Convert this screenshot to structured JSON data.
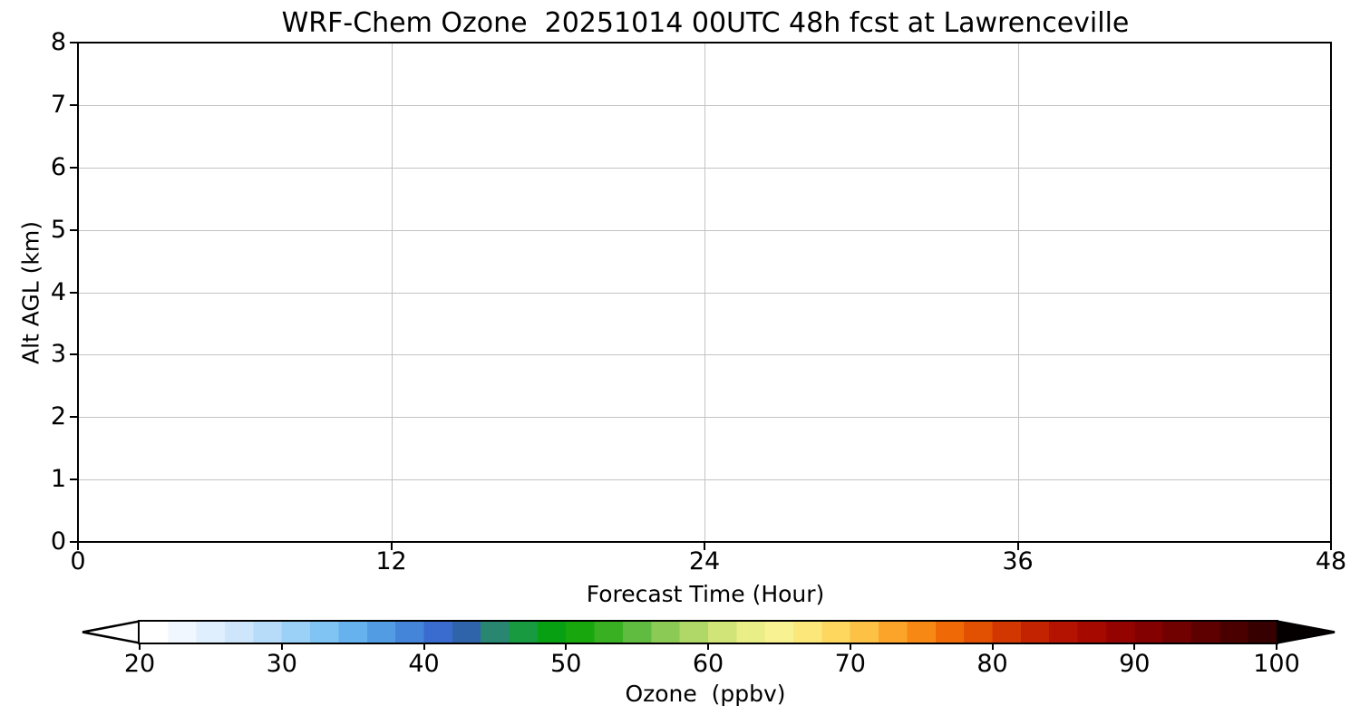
{
  "chart_data": {
    "type": "heatmap",
    "title": "WRF-Chem Ozone  20251014 00UTC 48h fcst at Lawrenceville",
    "xlabel": "Forecast Time (Hour)",
    "ylabel": "Alt AGL (km)",
    "xlim": [
      0,
      48
    ],
    "ylim": [
      0,
      8
    ],
    "x_ticks": [
      0,
      12,
      24,
      36,
      48
    ],
    "y_ticks": [
      0,
      1,
      2,
      3,
      4,
      5,
      6,
      7,
      8
    ],
    "x_gridlines": [
      12,
      24,
      36
    ],
    "y_gridlines": [
      1,
      2,
      3,
      4,
      5,
      6,
      7
    ],
    "grid": true,
    "plot_background": "#ffffff",
    "data_points": [],
    "colorbar": {
      "label": "Ozone  (ppbv)",
      "ticks": [
        20,
        30,
        40,
        50,
        60,
        70,
        80,
        90,
        100
      ],
      "range": [
        20,
        100
      ],
      "extend": "both",
      "under_color": "#ffffff",
      "over_color": "#000000",
      "band_step": 2,
      "band_colors": [
        "#ffffff",
        "#f0f7fe",
        "#e0effd",
        "#cde6fb",
        "#b7dcfa",
        "#9cd1f7",
        "#80c4f3",
        "#66b2ee",
        "#529ce4",
        "#4484d9",
        "#3a6bce",
        "#2f64ab",
        "#288671",
        "#189a40",
        "#08a013",
        "#18a80e",
        "#38b022",
        "#60bc40",
        "#8cca56",
        "#b0d868",
        "#d0e478",
        "#eaee86",
        "#f8f292",
        "#fce87a",
        "#fdd75e",
        "#fdc146",
        "#fca42a",
        "#f88814",
        "#ef6a06",
        "#e25002",
        "#d23601",
        "#c32301",
        "#b41301",
        "#a50900",
        "#950300",
        "#830100",
        "#710100",
        "#5f0000",
        "#4b0000",
        "#360000"
      ]
    }
  }
}
